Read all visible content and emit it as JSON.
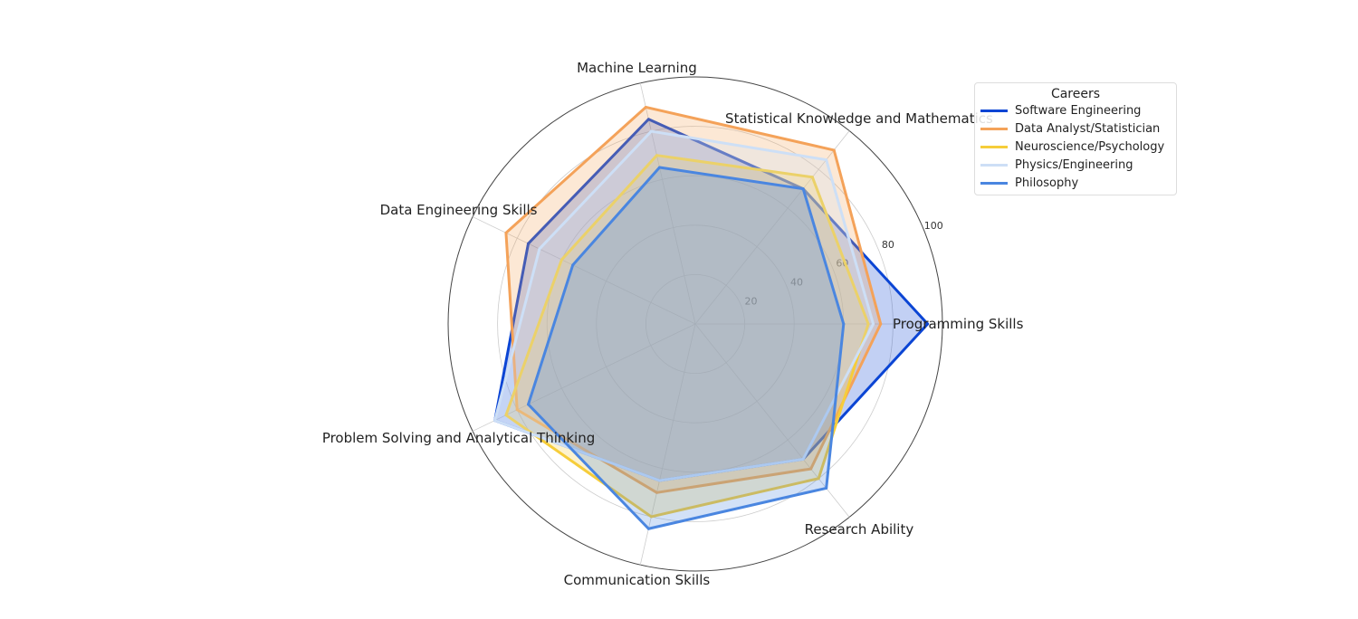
{
  "chart_data": {
    "type": "radar",
    "axes": [
      "Programming Skills",
      "Statistical Knowledge and Mathematics",
      "Machine Learning",
      "Data Engineering Skills",
      "Problem Solving and Analytical Thinking",
      "Communication Skills",
      "Research Ability"
    ],
    "rticks": [
      20,
      40,
      60,
      80,
      100
    ],
    "rlim": [
      0,
      100
    ],
    "legend_title": "Careers",
    "legend_position": "top-right",
    "series": [
      {
        "name": "Software Engineering",
        "color": "#0b45d4",
        "values": [
          94,
          70,
          85,
          75,
          90,
          65,
          70
        ]
      },
      {
        "name": "Data Analyst/Statistician",
        "color": "#f4a259",
        "values": [
          75,
          90,
          90,
          85,
          80,
          70,
          75
        ]
      },
      {
        "name": "Neuroscience/Psychology",
        "color": "#f6cd3a",
        "values": [
          70,
          76,
          70,
          60,
          85,
          80,
          80
        ]
      },
      {
        "name": "Physics/Engineering",
        "color": "#cddff6",
        "values": [
          72,
          85,
          80,
          70,
          90,
          65,
          70
        ]
      },
      {
        "name": "Philosophy",
        "color": "#4a86e0",
        "values": [
          60,
          70,
          65,
          55,
          75,
          85,
          85
        ]
      }
    ]
  }
}
